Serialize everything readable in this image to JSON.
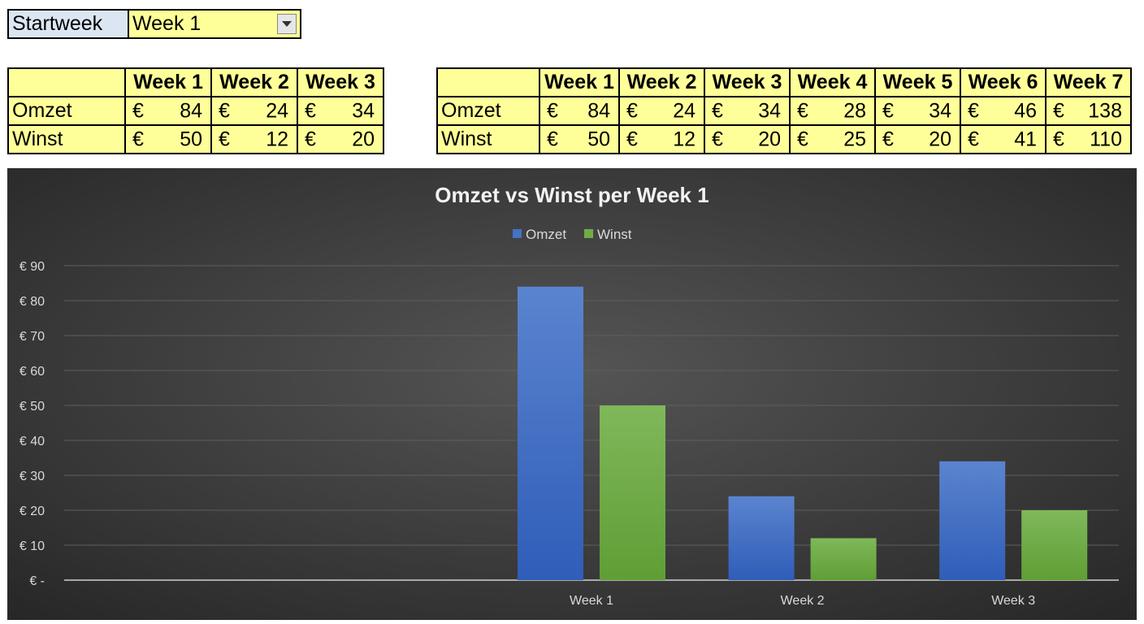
{
  "selector": {
    "label": "Startweek",
    "value": "Week 1"
  },
  "table_small": {
    "headers": [
      "",
      "Week 1",
      "Week 2",
      "Week 3"
    ],
    "rows": [
      {
        "label": "Omzet",
        "values": [
          "84",
          "24",
          "34"
        ]
      },
      {
        "label": "Winst",
        "values": [
          "50",
          "12",
          "20"
        ]
      }
    ]
  },
  "table_full": {
    "headers": [
      "",
      "Week 1",
      "Week 2",
      "Week 3",
      "Week 4",
      "Week 5",
      "Week 6",
      "Week 7"
    ],
    "rows": [
      {
        "label": "Omzet",
        "values": [
          "84",
          "24",
          "34",
          "28",
          "34",
          "46",
          "138"
        ]
      },
      {
        "label": "Winst",
        "values": [
          "50",
          "12",
          "20",
          "25",
          "20",
          "41",
          "110"
        ]
      }
    ]
  },
  "currency_symbol": "€",
  "chart_data": {
    "type": "bar",
    "title": "Omzet vs Winst per Week 1",
    "categories": [
      "",
      "",
      "Week 1",
      "Week 2",
      "Week 3"
    ],
    "series": [
      {
        "name": "Omzet",
        "color": "#4472c4",
        "values": [
          null,
          null,
          84,
          24,
          34
        ]
      },
      {
        "name": "Winst",
        "color": "#70ad47",
        "values": [
          null,
          null,
          50,
          12,
          20
        ]
      }
    ],
    "ylim": [
      0,
      90
    ],
    "yticks": [
      "€ -",
      "€ 10",
      "€ 20",
      "€ 30",
      "€ 40",
      "€ 50",
      "€ 60",
      "€ 70",
      "€ 80",
      "€ 90"
    ],
    "xlabel": "",
    "ylabel": "",
    "grid": true,
    "legend": "top"
  }
}
